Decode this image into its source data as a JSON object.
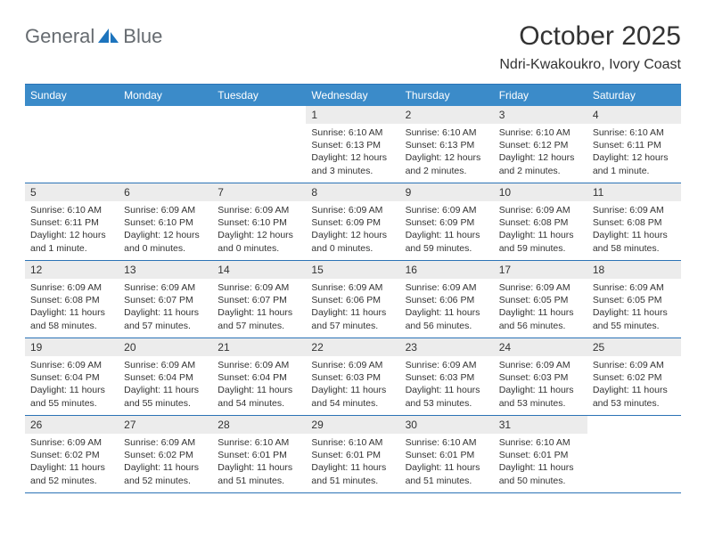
{
  "brand": {
    "part1": "General",
    "part2": "Blue"
  },
  "title": "October 2025",
  "subtitle": "Ndri-Kwakoukro, Ivory Coast",
  "colors": {
    "header_bar": "#3b8bc9",
    "border": "#2b73b6",
    "daynum_bg": "#ececec",
    "text": "#333333",
    "logo_gray": "#666b70",
    "logo_blue": "#1d74bd"
  },
  "weekdays": [
    "Sunday",
    "Monday",
    "Tuesday",
    "Wednesday",
    "Thursday",
    "Friday",
    "Saturday"
  ],
  "weeks": [
    [
      null,
      null,
      null,
      {
        "n": "1",
        "sr": "Sunrise: 6:10 AM",
        "ss": "Sunset: 6:13 PM",
        "dl": "Daylight: 12 hours and 3 minutes."
      },
      {
        "n": "2",
        "sr": "Sunrise: 6:10 AM",
        "ss": "Sunset: 6:13 PM",
        "dl": "Daylight: 12 hours and 2 minutes."
      },
      {
        "n": "3",
        "sr": "Sunrise: 6:10 AM",
        "ss": "Sunset: 6:12 PM",
        "dl": "Daylight: 12 hours and 2 minutes."
      },
      {
        "n": "4",
        "sr": "Sunrise: 6:10 AM",
        "ss": "Sunset: 6:11 PM",
        "dl": "Daylight: 12 hours and 1 minute."
      }
    ],
    [
      {
        "n": "5",
        "sr": "Sunrise: 6:10 AM",
        "ss": "Sunset: 6:11 PM",
        "dl": "Daylight: 12 hours and 1 minute."
      },
      {
        "n": "6",
        "sr": "Sunrise: 6:09 AM",
        "ss": "Sunset: 6:10 PM",
        "dl": "Daylight: 12 hours and 0 minutes."
      },
      {
        "n": "7",
        "sr": "Sunrise: 6:09 AM",
        "ss": "Sunset: 6:10 PM",
        "dl": "Daylight: 12 hours and 0 minutes."
      },
      {
        "n": "8",
        "sr": "Sunrise: 6:09 AM",
        "ss": "Sunset: 6:09 PM",
        "dl": "Daylight: 12 hours and 0 minutes."
      },
      {
        "n": "9",
        "sr": "Sunrise: 6:09 AM",
        "ss": "Sunset: 6:09 PM",
        "dl": "Daylight: 11 hours and 59 minutes."
      },
      {
        "n": "10",
        "sr": "Sunrise: 6:09 AM",
        "ss": "Sunset: 6:08 PM",
        "dl": "Daylight: 11 hours and 59 minutes."
      },
      {
        "n": "11",
        "sr": "Sunrise: 6:09 AM",
        "ss": "Sunset: 6:08 PM",
        "dl": "Daylight: 11 hours and 58 minutes."
      }
    ],
    [
      {
        "n": "12",
        "sr": "Sunrise: 6:09 AM",
        "ss": "Sunset: 6:08 PM",
        "dl": "Daylight: 11 hours and 58 minutes."
      },
      {
        "n": "13",
        "sr": "Sunrise: 6:09 AM",
        "ss": "Sunset: 6:07 PM",
        "dl": "Daylight: 11 hours and 57 minutes."
      },
      {
        "n": "14",
        "sr": "Sunrise: 6:09 AM",
        "ss": "Sunset: 6:07 PM",
        "dl": "Daylight: 11 hours and 57 minutes."
      },
      {
        "n": "15",
        "sr": "Sunrise: 6:09 AM",
        "ss": "Sunset: 6:06 PM",
        "dl": "Daylight: 11 hours and 57 minutes."
      },
      {
        "n": "16",
        "sr": "Sunrise: 6:09 AM",
        "ss": "Sunset: 6:06 PM",
        "dl": "Daylight: 11 hours and 56 minutes."
      },
      {
        "n": "17",
        "sr": "Sunrise: 6:09 AM",
        "ss": "Sunset: 6:05 PM",
        "dl": "Daylight: 11 hours and 56 minutes."
      },
      {
        "n": "18",
        "sr": "Sunrise: 6:09 AM",
        "ss": "Sunset: 6:05 PM",
        "dl": "Daylight: 11 hours and 55 minutes."
      }
    ],
    [
      {
        "n": "19",
        "sr": "Sunrise: 6:09 AM",
        "ss": "Sunset: 6:04 PM",
        "dl": "Daylight: 11 hours and 55 minutes."
      },
      {
        "n": "20",
        "sr": "Sunrise: 6:09 AM",
        "ss": "Sunset: 6:04 PM",
        "dl": "Daylight: 11 hours and 55 minutes."
      },
      {
        "n": "21",
        "sr": "Sunrise: 6:09 AM",
        "ss": "Sunset: 6:04 PM",
        "dl": "Daylight: 11 hours and 54 minutes."
      },
      {
        "n": "22",
        "sr": "Sunrise: 6:09 AM",
        "ss": "Sunset: 6:03 PM",
        "dl": "Daylight: 11 hours and 54 minutes."
      },
      {
        "n": "23",
        "sr": "Sunrise: 6:09 AM",
        "ss": "Sunset: 6:03 PM",
        "dl": "Daylight: 11 hours and 53 minutes."
      },
      {
        "n": "24",
        "sr": "Sunrise: 6:09 AM",
        "ss": "Sunset: 6:03 PM",
        "dl": "Daylight: 11 hours and 53 minutes."
      },
      {
        "n": "25",
        "sr": "Sunrise: 6:09 AM",
        "ss": "Sunset: 6:02 PM",
        "dl": "Daylight: 11 hours and 53 minutes."
      }
    ],
    [
      {
        "n": "26",
        "sr": "Sunrise: 6:09 AM",
        "ss": "Sunset: 6:02 PM",
        "dl": "Daylight: 11 hours and 52 minutes."
      },
      {
        "n": "27",
        "sr": "Sunrise: 6:09 AM",
        "ss": "Sunset: 6:02 PM",
        "dl": "Daylight: 11 hours and 52 minutes."
      },
      {
        "n": "28",
        "sr": "Sunrise: 6:10 AM",
        "ss": "Sunset: 6:01 PM",
        "dl": "Daylight: 11 hours and 51 minutes."
      },
      {
        "n": "29",
        "sr": "Sunrise: 6:10 AM",
        "ss": "Sunset: 6:01 PM",
        "dl": "Daylight: 11 hours and 51 minutes."
      },
      {
        "n": "30",
        "sr": "Sunrise: 6:10 AM",
        "ss": "Sunset: 6:01 PM",
        "dl": "Daylight: 11 hours and 51 minutes."
      },
      {
        "n": "31",
        "sr": "Sunrise: 6:10 AM",
        "ss": "Sunset: 6:01 PM",
        "dl": "Daylight: 11 hours and 50 minutes."
      },
      null
    ]
  ]
}
